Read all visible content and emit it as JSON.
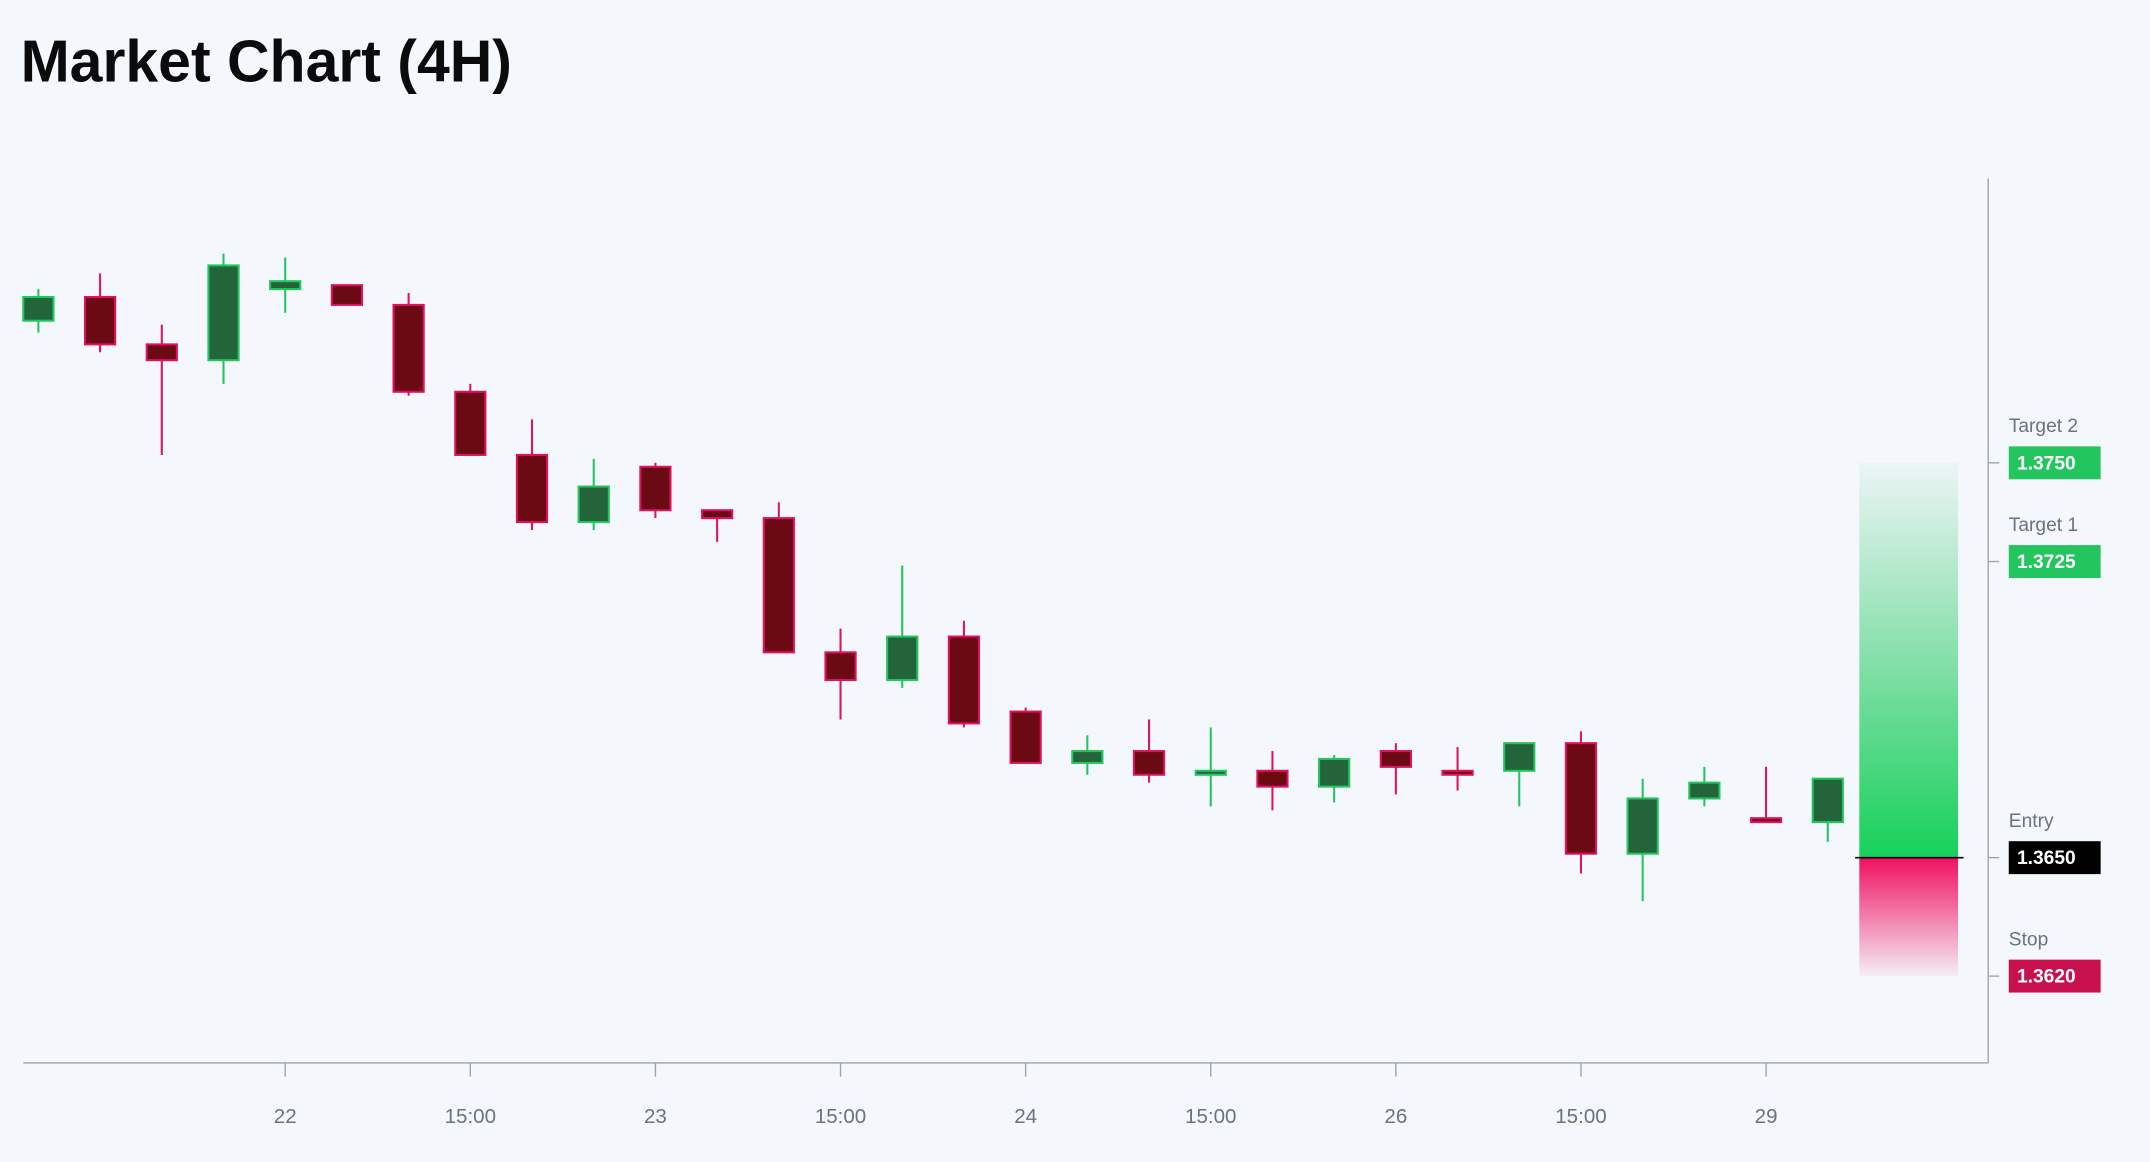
{
  "chart_data": {
    "type": "candlestick",
    "title": "Market Chart (4H)",
    "categories": [
      null,
      null,
      null,
      null,
      "22",
      null,
      null,
      "15:00",
      null,
      null,
      "23",
      null,
      null,
      "15:00",
      null,
      null,
      "24",
      null,
      null,
      "15:00",
      null,
      null,
      "26",
      null,
      null,
      "15:00",
      null,
      null,
      "29",
      null
    ],
    "open": [
      1.3786,
      1.3792,
      1.378,
      1.3776,
      1.3794,
      1.3795,
      1.379,
      1.3768,
      1.3752,
      1.3735,
      1.3749,
      1.3738,
      1.3736,
      1.3702,
      1.3695,
      1.3706,
      1.3687,
      1.3674,
      1.3677,
      1.3671,
      1.3672,
      1.3668,
      1.3677,
      1.3672,
      1.3672,
      1.3679,
      1.3651,
      1.3665,
      1.366,
      1.3659
    ],
    "high": [
      1.3794,
      1.3798,
      1.3785,
      1.3803,
      1.3802,
      1.3795,
      1.3793,
      1.377,
      1.3761,
      1.3751,
      1.375,
      1.3738,
      1.374,
      1.3708,
      1.3724,
      1.371,
      1.3688,
      1.3681,
      1.3685,
      1.3683,
      1.3677,
      1.3676,
      1.3679,
      1.3678,
      1.3679,
      1.3682,
      1.367,
      1.3673,
      1.3673,
      1.367
    ],
    "low": [
      1.3783,
      1.3778,
      1.3752,
      1.377,
      1.3788,
      1.379,
      1.3767,
      1.3752,
      1.3733,
      1.3733,
      1.3736,
      1.373,
      1.3702,
      1.3685,
      1.3693,
      1.3683,
      1.3674,
      1.3671,
      1.3669,
      1.3663,
      1.3662,
      1.3664,
      1.3666,
      1.3667,
      1.3663,
      1.3646,
      1.3639,
      1.3663,
      1.3659,
      1.3654
    ],
    "close": [
      1.3792,
      1.378,
      1.3776,
      1.38,
      1.3796,
      1.379,
      1.3768,
      1.3752,
      1.3735,
      1.3744,
      1.3738,
      1.3736,
      1.3702,
      1.3695,
      1.3706,
      1.3684,
      1.3674,
      1.3677,
      1.3671,
      1.3672,
      1.3668,
      1.3675,
      1.3673,
      1.3671,
      1.3679,
      1.3651,
      1.3665,
      1.3669,
      1.3659,
      1.367
    ],
    "up_color": "#22c55e",
    "up_fill": "#23643a",
    "down_color": "#e0115f",
    "down_fill": "#6c0a14",
    "ylim": [
      1.3598,
      1.3822
    ],
    "levels": [
      {
        "name": "Target 2",
        "value": 1.375,
        "value_label": "1.3750",
        "color": "#22c55e"
      },
      {
        "name": "Target 1",
        "value": 1.3725,
        "value_label": "1.3725",
        "color": "#22c55e"
      },
      {
        "name": "Entry",
        "value": 1.365,
        "value_label": "1.3650",
        "color": "#000000"
      },
      {
        "name": "Stop",
        "value": 1.362,
        "value_label": "1.3620",
        "color": "#c8104f"
      }
    ]
  }
}
